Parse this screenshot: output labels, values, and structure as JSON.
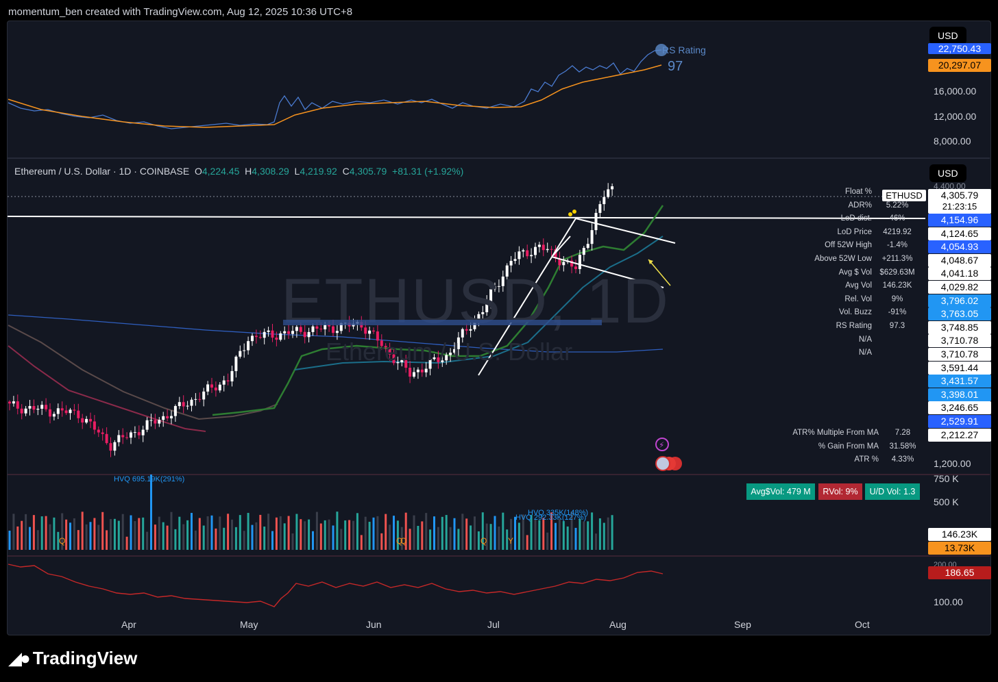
{
  "header": "momentum_ben created with TradingView.com, Aug 12, 2025 10:36 UTC+8",
  "currency": "USD",
  "rs_pane": {
    "title": "RS Rating",
    "value": "97",
    "label_blue": "22,750.43",
    "label_orange": "20,297.07",
    "ticks": [
      "16,000.00",
      "12,000.00",
      "8,000.00"
    ]
  },
  "symbol": {
    "name": "Ethereum / U.S. Dollar · 1D · COINBASE",
    "o_label": "O",
    "o": "4,224.45",
    "h_label": "H",
    "h": "4,308.29",
    "l_label": "L",
    "l": "4,219.92",
    "c_label": "C",
    "c": "4,305.79",
    "chg": "+81.31 (+1.92%)",
    "ticker": "ETHUSD",
    "watermark": "ETHUSD, 1D",
    "watermark_sub": "Ethereum / U.S. Dollar"
  },
  "price_axis": {
    "top_tick": "4,400.00",
    "price": "4,305.79",
    "countdown": "21:23:15",
    "labels": [
      {
        "t": "4,154.96",
        "bg": "#2962ff",
        "fg": "#ffffff"
      },
      {
        "t": "4,124.65",
        "bg": "#ffffff",
        "fg": "#000000"
      },
      {
        "t": "4,054.93",
        "bg": "#2962ff",
        "fg": "#ffffff"
      },
      {
        "t": "4,048.67",
        "bg": "#ffffff",
        "fg": "#000000"
      },
      {
        "t": "4,041.18",
        "bg": "#ffffff",
        "fg": "#000000"
      },
      {
        "t": "4,029.82",
        "bg": "#ffffff",
        "fg": "#000000"
      },
      {
        "t": "3,796.02",
        "bg": "#2196f3",
        "fg": "#ffffff"
      },
      {
        "t": "3,763.05",
        "bg": "#2196f3",
        "fg": "#ffffff"
      },
      {
        "t": "3,748.85",
        "bg": "#ffffff",
        "fg": "#000000"
      },
      {
        "t": "3,710.78",
        "bg": "#ffffff",
        "fg": "#000000"
      },
      {
        "t": "3,710.78",
        "bg": "#ffffff",
        "fg": "#000000"
      },
      {
        "t": "3,591.44",
        "bg": "#ffffff",
        "fg": "#000000"
      },
      {
        "t": "3,431.57",
        "bg": "#2196f3",
        "fg": "#ffffff"
      },
      {
        "t": "3,398.01",
        "bg": "#2196f3",
        "fg": "#ffffff"
      },
      {
        "t": "3,246.65",
        "bg": "#ffffff",
        "fg": "#000000"
      },
      {
        "t": "2,529.91",
        "bg": "#2962ff",
        "fg": "#ffffff"
      },
      {
        "t": "2,212.27",
        "bg": "#ffffff",
        "fg": "#000000"
      }
    ],
    "bottom_tick": "1,200.00"
  },
  "stats": [
    {
      "k": "Float %",
      "v": ""
    },
    {
      "k": "ADR%",
      "v": "5.22%"
    },
    {
      "k": "LoD dist.",
      "v": "46%"
    },
    {
      "k": "LoD Price",
      "v": "4219.92"
    },
    {
      "k": "Off 52W High",
      "v": "-1.4%"
    },
    {
      "k": "Above 52W Low",
      "v": "+211.3%"
    },
    {
      "k": "Avg $ Vol",
      "v": "$629.63M"
    },
    {
      "k": "Avg Vol",
      "v": "146.23K"
    },
    {
      "k": "Rel. Vol",
      "v": "9%"
    },
    {
      "k": "Vol. Buzz",
      "v": "-91%"
    },
    {
      "k": "RS Rating",
      "v": "97.3"
    },
    {
      "k": "N/A",
      "v": ""
    },
    {
      "k": "N/A",
      "v": ""
    }
  ],
  "stats2": [
    {
      "k": "ATR% Multiple From MA",
      "v": "7.28"
    },
    {
      "k": "% Gain From MA",
      "v": "31.58%"
    },
    {
      "k": "ATR %",
      "v": "4.33%"
    }
  ],
  "volume_pane": {
    "hvq1": "HVQ 695.19K(291%)",
    "hvq2": "HVQ 335K(148%)",
    "hvq3": "HVQ 292.33K(127%)",
    "ticks": [
      "750 K",
      "500 K"
    ],
    "label_white": "146.23K",
    "label_orange": "13.73K",
    "badges": [
      {
        "t": "Avg$Vol: 479 M",
        "bg": "#089981"
      },
      {
        "t": "RVol: 9%",
        "bg": "#b22833"
      },
      {
        "t": "U/D Vol: 1.3",
        "bg": "#089981"
      }
    ],
    "markers": [
      "Q",
      "Q",
      "Q",
      "Q",
      "Y"
    ]
  },
  "lower_pane": {
    "label": "186.65",
    "tick_top": "200.00",
    "tick": "100.00"
  },
  "months": [
    "Apr",
    "May",
    "Jun",
    "Jul",
    "Aug",
    "Sep",
    "Oct"
  ],
  "brand": "TradingView",
  "colors": {
    "up": "#ffffff",
    "down": "#e91e63",
    "rs_line": "#2962ff",
    "rs_ma": "#ff9800",
    "accent": "#2962ff"
  },
  "chart_data": {
    "type": "candlestick",
    "title": "Ethereum / U.S. Dollar · 1D · COINBASE",
    "ohlc_last": {
      "open": 4224.45,
      "high": 4308.29,
      "low": 4219.92,
      "close": 4305.79
    },
    "x_months": [
      "Apr",
      "May",
      "Jun",
      "Jul",
      "Aug",
      "Sep",
      "Oct"
    ],
    "y_axis_ticks": [
      1200,
      4400
    ],
    "close_approx": [
      {
        "x": "Mar 15",
        "y": 1900
      },
      {
        "x": "Apr 1",
        "y": 1820
      },
      {
        "x": "Apr 9",
        "y": 1480
      },
      {
        "x": "Apr 22",
        "y": 1780
      },
      {
        "x": "May 8",
        "y": 2200
      },
      {
        "x": "May 13",
        "y": 2650
      },
      {
        "x": "Jun 10",
        "y": 2800
      },
      {
        "x": "Jun 22",
        "y": 2250
      },
      {
        "x": "Jul 1",
        "y": 2450
      },
      {
        "x": "Jul 10",
        "y": 2960
      },
      {
        "x": "Jul 17",
        "y": 3500
      },
      {
        "x": "Jul 24",
        "y": 3650
      },
      {
        "x": "Aug 2",
        "y": 3400
      },
      {
        "x": "Aug 9",
        "y": 4200
      },
      {
        "x": "Aug 11",
        "y": 4305.79
      }
    ],
    "rs_rating": 97,
    "volume_last": {
      "avg": "146.23K",
      "current": "13.73K"
    }
  }
}
